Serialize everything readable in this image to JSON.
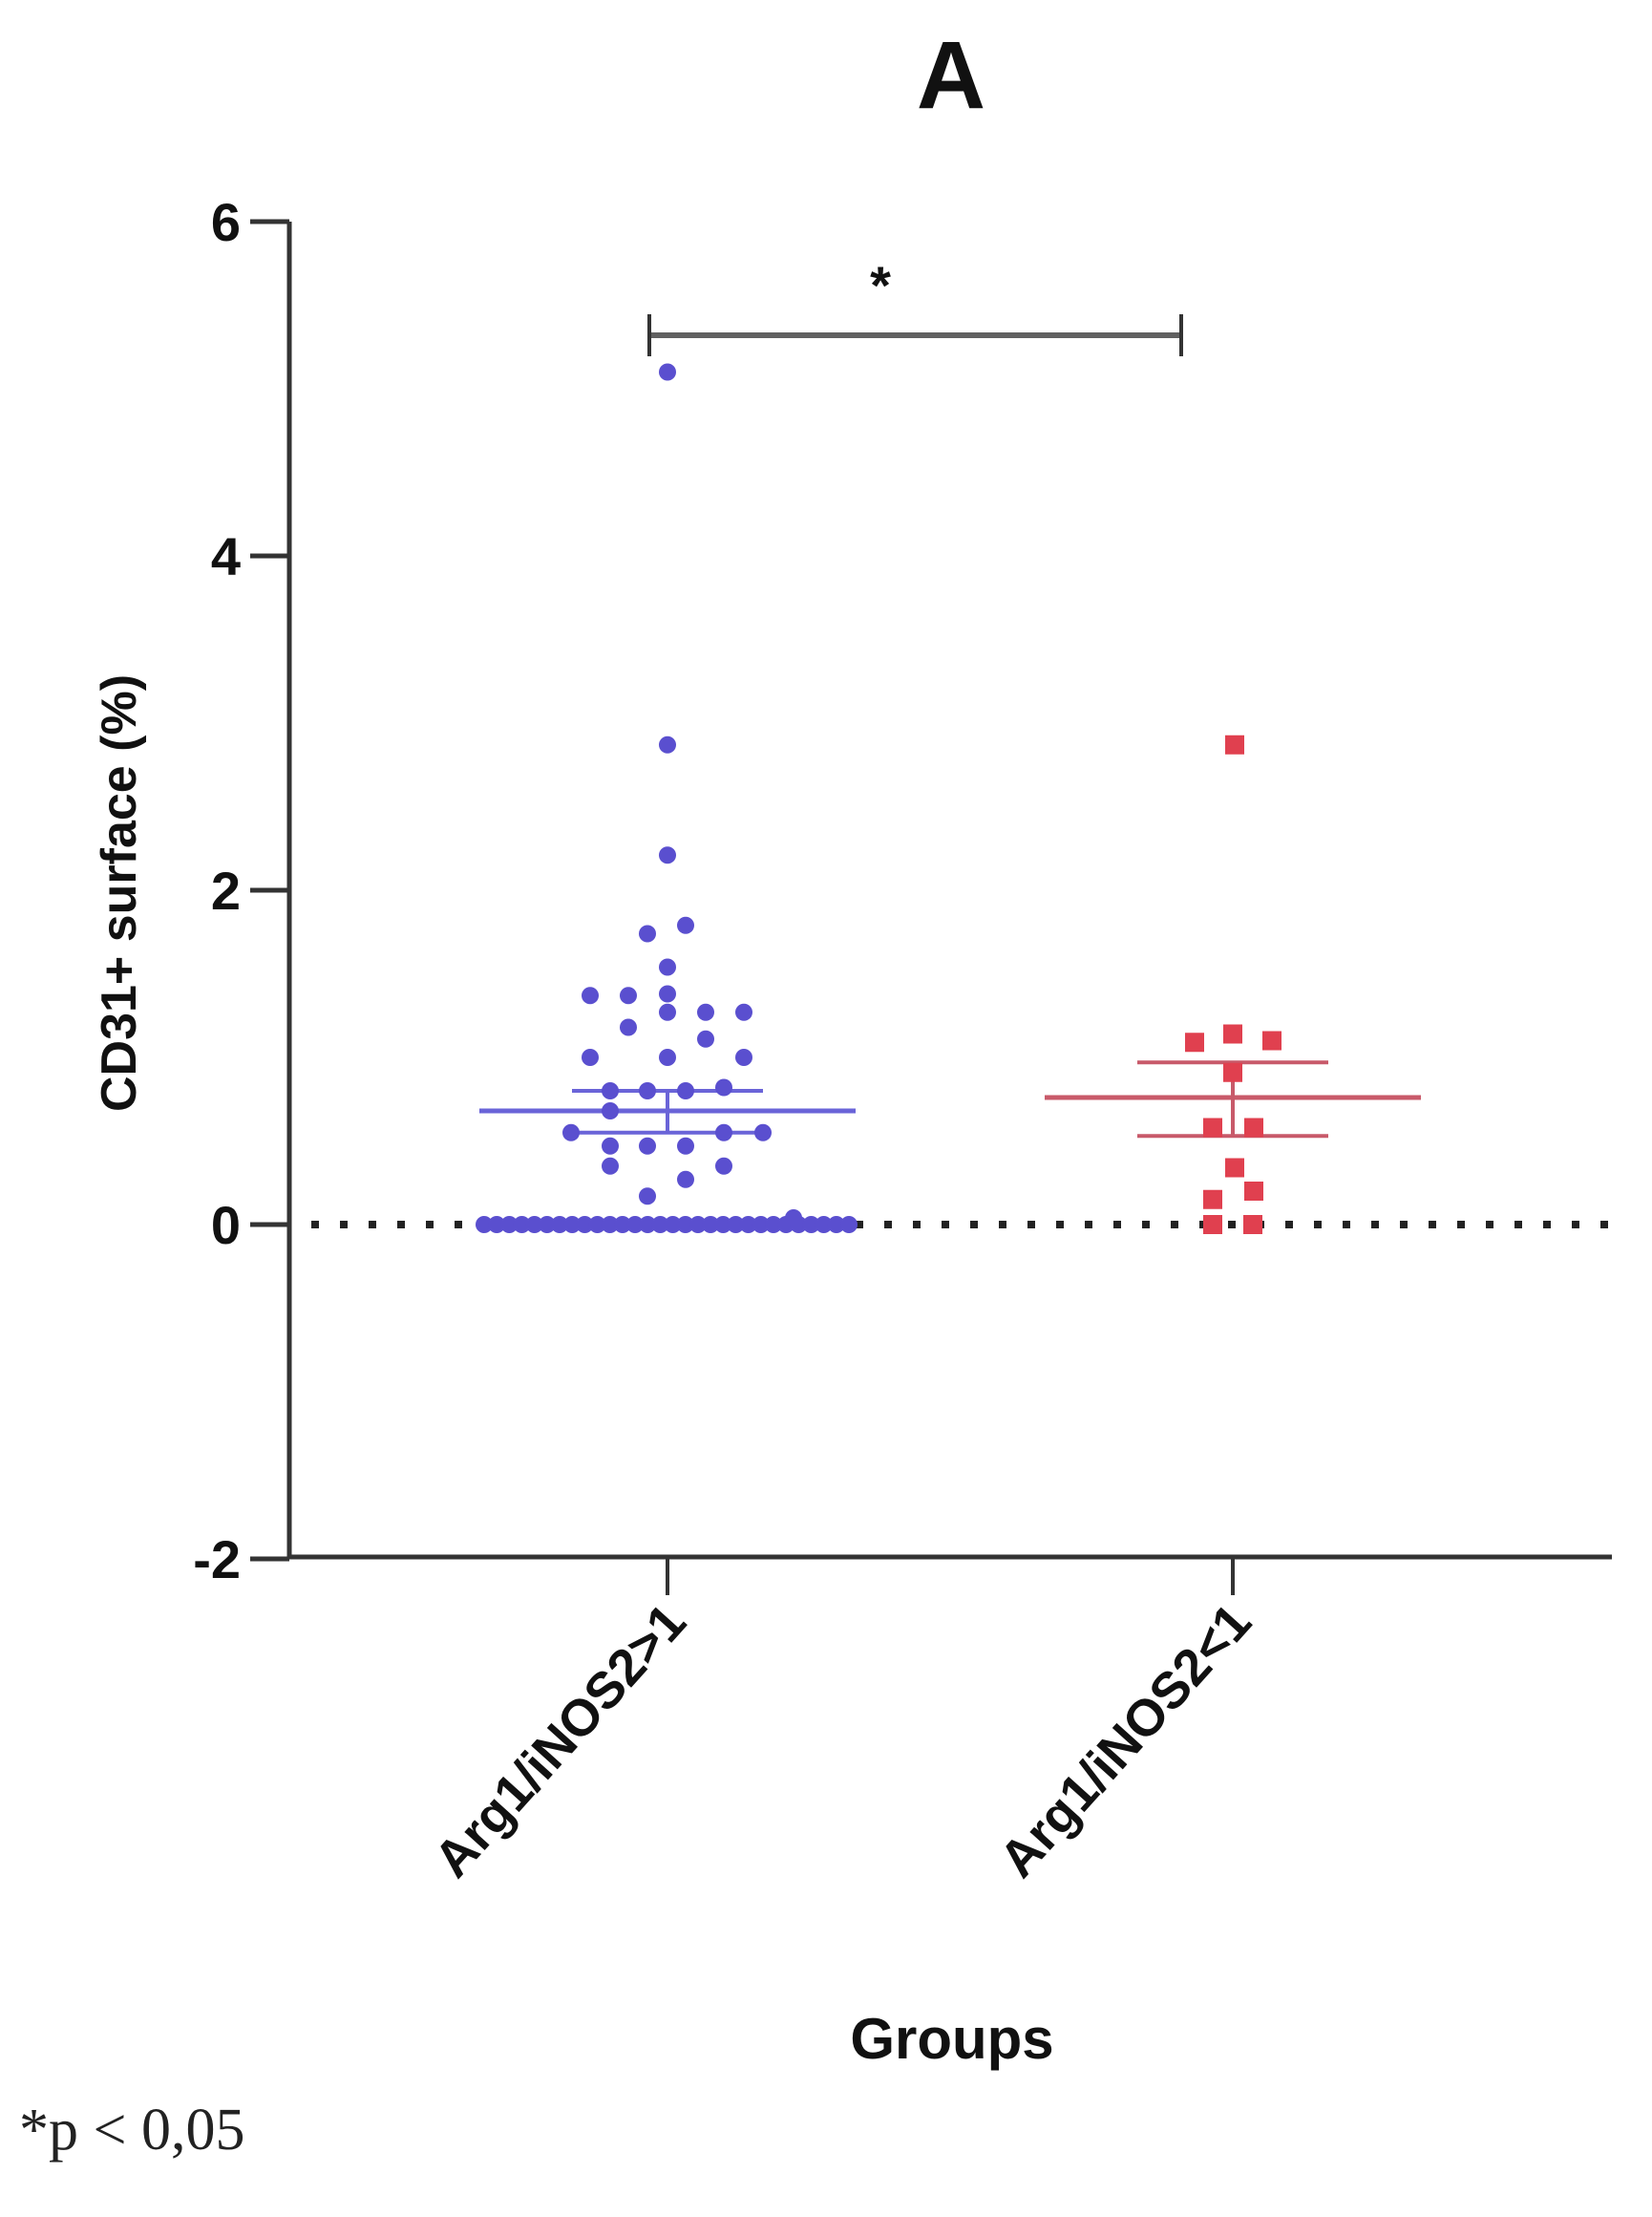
{
  "panel_label": "A",
  "footnote": "*p < 0,05",
  "significance": {
    "label": "*",
    "from_group": 0,
    "to_group": 1,
    "y_value": 5.42
  },
  "colors": {
    "group1": "#5a4fcf",
    "group1_line": "#6a64d8",
    "group2": "#e0404f",
    "group2_line": "#c85a6a",
    "axis": "#333333",
    "bracket": "#606060",
    "zero_line": "#222222"
  },
  "chart_data": {
    "type": "scatter",
    "title": "A",
    "xlabel": "Groups",
    "ylabel": "CD31+ surface (%)",
    "ylim": [
      -2,
      6
    ],
    "yticks": [
      -2,
      0,
      2,
      4,
      6
    ],
    "grid": false,
    "reference_line": {
      "y": 0,
      "style": "dotted"
    },
    "categories": [
      "Arg1/iNOS2>1",
      "Arg1/iNOS2<1"
    ],
    "annotation": {
      "type": "significance_bracket",
      "label": "*",
      "between": [
        "Arg1/iNOS2>1",
        "Arg1/iNOS2<1"
      ]
    },
    "footnote": "*p < 0,05",
    "series": [
      {
        "name": "Arg1/iNOS2>1",
        "marker": "circle",
        "color": "#5a4fcf",
        "mean": 0.68,
        "sem": [
          0.55,
          0.8
        ],
        "points": [
          {
            "dx": 0,
            "y": 5.1
          },
          {
            "dx": 0,
            "y": 2.87
          },
          {
            "dx": 0,
            "y": 2.21
          },
          {
            "dx": -21,
            "y": 1.74
          },
          {
            "dx": 19,
            "y": 1.79
          },
          {
            "dx": 0,
            "y": 1.54
          },
          {
            "dx": -81,
            "y": 1.37
          },
          {
            "dx": -41,
            "y": 1.37
          },
          {
            "dx": 0,
            "y": 1.38
          },
          {
            "dx": 0,
            "y": 1.27
          },
          {
            "dx": 40,
            "y": 1.27
          },
          {
            "dx": 80,
            "y": 1.27
          },
          {
            "dx": -41,
            "y": 1.18
          },
          {
            "dx": 40,
            "y": 1.11
          },
          {
            "dx": -81,
            "y": 1.0
          },
          {
            "dx": 0,
            "y": 1.0
          },
          {
            "dx": 80,
            "y": 1.0
          },
          {
            "dx": -60,
            "y": 0.8
          },
          {
            "dx": -21,
            "y": 0.8
          },
          {
            "dx": 19,
            "y": 0.8
          },
          {
            "dx": 59,
            "y": 0.82
          },
          {
            "dx": -60,
            "y": 0.68
          },
          {
            "dx": -101,
            "y": 0.55
          },
          {
            "dx": 59,
            "y": 0.55
          },
          {
            "dx": 100,
            "y": 0.55
          },
          {
            "dx": -60,
            "y": 0.47
          },
          {
            "dx": -21,
            "y": 0.47
          },
          {
            "dx": 19,
            "y": 0.47
          },
          {
            "dx": -60,
            "y": 0.35
          },
          {
            "dx": 59,
            "y": 0.35
          },
          {
            "dx": 19,
            "y": 0.27
          },
          {
            "dx": -21,
            "y": 0.17
          },
          {
            "dx": 132,
            "y": 0.04
          }
        ],
        "zero_count": 30,
        "zero_span": [
          -192,
          190
        ]
      },
      {
        "name": "Arg1/iNOS2<1",
        "marker": "square",
        "color": "#e0404f",
        "mean": 0.76,
        "sem": [
          0.53,
          0.97
        ],
        "points": [
          {
            "dx": 2,
            "y": 2.87
          },
          {
            "dx": -40,
            "y": 1.09
          },
          {
            "dx": 0,
            "y": 1.14
          },
          {
            "dx": 41,
            "y": 1.1
          },
          {
            "dx": 0,
            "y": 0.91
          },
          {
            "dx": -21,
            "y": 0.58
          },
          {
            "dx": 22,
            "y": 0.58
          },
          {
            "dx": 2,
            "y": 0.34
          },
          {
            "dx": 22,
            "y": 0.2
          },
          {
            "dx": -21,
            "y": 0.15
          },
          {
            "dx": -21,
            "y": 0.0
          },
          {
            "dx": 21,
            "y": 0.0
          }
        ],
        "zero_count": 0
      }
    ]
  }
}
